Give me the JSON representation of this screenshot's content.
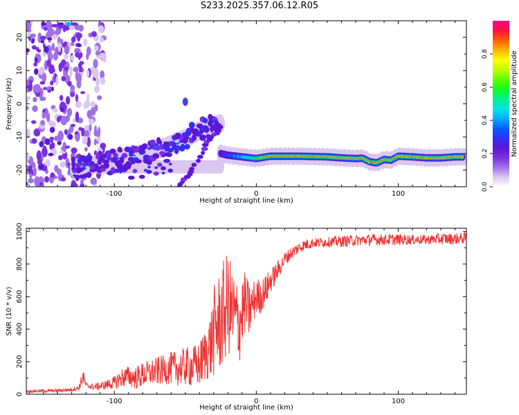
{
  "figure_title": "S233.2025.357.06.12.R05",
  "chart_data": [
    {
      "type": "heatmap",
      "title": "S233.2025.357.06.12.R05",
      "xlabel": "Height of straight line (km)",
      "ylabel": "Frequency (Hz)",
      "xlim": [
        -162,
        148
      ],
      "ylim": [
        -25,
        25
      ],
      "xticks": [
        -100,
        0,
        100
      ],
      "yticks": [
        -20,
        -10,
        0,
        10,
        20
      ],
      "colorbar": {
        "label": "Normalized spectral amplitude",
        "range": [
          0,
          1
        ],
        "ticks": [
          "0.0",
          "0.2",
          "0.4",
          "0.6",
          "0.8"
        ],
        "colors": [
          "#ffffff",
          "#d9c7f2",
          "#a070e6",
          "#7a2ee0",
          "#5a18d6",
          "#3030ff",
          "#0060ff",
          "#00b0ff",
          "#00e8e0",
          "#00f090",
          "#10ff20",
          "#60ff00",
          "#c0ff00",
          "#ffff00",
          "#ffb000",
          "#ff6000",
          "#ff1040",
          "#ff0090"
        ]
      },
      "ridge_main": {
        "x": [
          -25,
          -20,
          -10,
          0,
          10,
          30,
          50,
          60,
          70,
          75,
          80,
          85,
          90,
          95,
          100,
          110,
          120,
          130,
          140,
          148
        ],
        "y": [
          -15.0,
          -15.5,
          -16.0,
          -16.5,
          -15.8,
          -15.8,
          -16.0,
          -16.3,
          -16.5,
          -16.4,
          -17.5,
          -17.8,
          -16.8,
          -17.0,
          -15.8,
          -16.0,
          -16.3,
          -16.3,
          -16.0,
          -16.0
        ]
      },
      "ridge_diagonal": {
        "x": [
          -128,
          -110,
          -90,
          -70,
          -50,
          -35,
          -25
        ],
        "y": [
          -19.5,
          -18.0,
          -16.0,
          -14.0,
          -10.5,
          -7.0,
          -6.0
        ]
      },
      "ridge_lower": {
        "x": [
          -55,
          -45,
          -35,
          -25
        ],
        "y": [
          -25.0,
          -20.0,
          -12.0,
          -7.0
        ]
      }
    },
    {
      "type": "line",
      "title": "",
      "xlabel": "Height of straight line (km)",
      "ylabel": "SNR (10 * v/v)",
      "xlim": [
        -162,
        148
      ],
      "ylim": [
        0,
        1020
      ],
      "xticks": [
        -100,
        0,
        100
      ],
      "yticks": [
        0,
        200,
        400,
        600,
        800,
        1000
      ],
      "series": [
        {
          "name": "SNR",
          "color": "#ee3333",
          "x": [
            -162,
            -150,
            -140,
            -130,
            -125,
            -122,
            -120,
            -115,
            -110,
            -105,
            -100,
            -95,
            -90,
            -85,
            -80,
            -75,
            -70,
            -65,
            -60,
            -55,
            -50,
            -45,
            -40,
            -35,
            -32,
            -30,
            -28,
            -25,
            -22,
            -20,
            -18,
            -15,
            -12,
            -10,
            -8,
            -5,
            -3,
            0,
            3,
            5,
            8,
            10,
            12,
            15,
            18,
            20,
            25,
            30,
            35,
            40,
            50,
            60,
            70,
            80,
            90,
            100,
            110,
            120,
            130,
            140,
            148
          ],
          "y": [
            18,
            20,
            22,
            28,
            40,
            110,
            55,
            45,
            50,
            60,
            70,
            100,
            110,
            100,
            120,
            130,
            140,
            150,
            160,
            160,
            170,
            170,
            180,
            260,
            300,
            380,
            420,
            450,
            520,
            560,
            520,
            470,
            430,
            500,
            560,
            510,
            550,
            600,
            600,
            620,
            660,
            700,
            720,
            760,
            800,
            830,
            870,
            900,
            920,
            930,
            935,
            940,
            945,
            950,
            950,
            950,
            950,
            950,
            955,
            955,
            960
          ],
          "amp": [
            8,
            10,
            10,
            12,
            15,
            50,
            15,
            20,
            25,
            30,
            40,
            60,
            65,
            70,
            80,
            80,
            90,
            90,
            100,
            110,
            120,
            130,
            140,
            180,
            220,
            280,
            300,
            320,
            330,
            320,
            300,
            280,
            250,
            230,
            200,
            180,
            140,
            120,
            110,
            100,
            90,
            80,
            70,
            60,
            50,
            45,
            40,
            35,
            35,
            30,
            30,
            35,
            35,
            35,
            35,
            35,
            30,
            30,
            35,
            35,
            35
          ]
        }
      ]
    }
  ]
}
